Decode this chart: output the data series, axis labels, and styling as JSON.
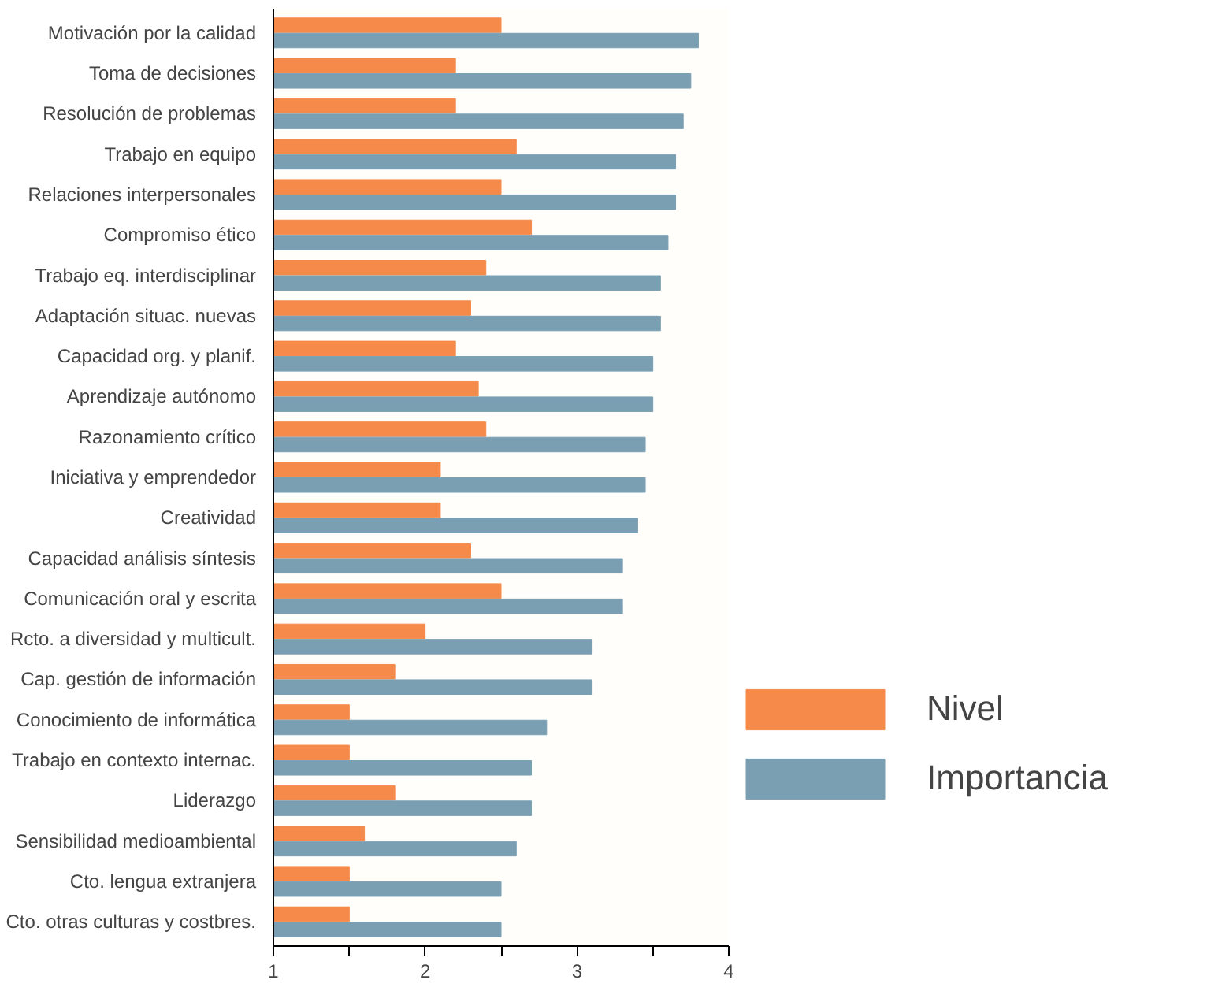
{
  "chart_data": {
    "type": "bar",
    "orientation": "horizontal",
    "categories": [
      "Motivación por la calidad",
      "Toma de decisiones",
      "Resolución de problemas",
      "Trabajo en equipo",
      "Relaciones interpersonales",
      "Compromiso ético",
      "Trabajo eq. interdisciplinar",
      "Adaptación situac. nuevas",
      "Capacidad org. y planif.",
      "Aprendizaje autónomo",
      "Razonamiento crítico",
      "Iniciativa y emprendedor",
      "Creatividad",
      "Capacidad análisis síntesis",
      "Comunicación oral y escrita",
      "Rcto. a diversidad y multicult.",
      "Cap. gestión de información",
      "Conocimiento de informática",
      "Trabajo en contexto internac.",
      "Liderazgo",
      "Sensibilidad medioambiental",
      "Cto. lengua extranjera",
      "Cto. otras culturas y costbres."
    ],
    "series": [
      {
        "name": "Nivel",
        "color": "#f58a4b",
        "values": [
          2.5,
          2.2,
          2.2,
          2.6,
          2.5,
          2.7,
          2.4,
          2.3,
          2.2,
          2.35,
          2.4,
          2.1,
          2.1,
          2.3,
          2.5,
          2.0,
          1.8,
          1.5,
          1.5,
          1.8,
          1.6,
          1.5,
          1.5
        ]
      },
      {
        "name": "Importancia",
        "color": "#7a9fb3",
        "values": [
          3.8,
          3.75,
          3.7,
          3.65,
          3.65,
          3.6,
          3.55,
          3.55,
          3.5,
          3.5,
          3.45,
          3.45,
          3.4,
          3.3,
          3.3,
          3.1,
          3.1,
          2.8,
          2.7,
          2.7,
          2.6,
          2.5,
          2.5
        ]
      }
    ],
    "xlim": [
      1,
      4
    ],
    "xticks": [
      1,
      {
        "value": 1.5,
        "label": null
      },
      2,
      {
        "value": 2.5,
        "label": null
      },
      3,
      {
        "value": 3.5,
        "label": null
      },
      4
    ],
    "grid": false,
    "legend": "right"
  }
}
